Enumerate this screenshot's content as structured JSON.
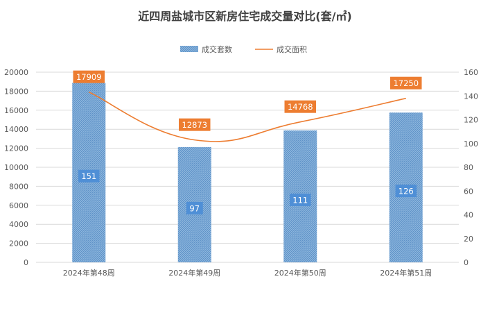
{
  "colors": {
    "bar": "#8db6dd",
    "bar_hatch": "#5a8fc6",
    "line": "#ed7d31",
    "area_label_bg": "#ed7d31",
    "count_label_bg": "#4f8fd6",
    "grid": "#d9d9d9",
    "axis_text": "#595959",
    "title": "#404040"
  },
  "chart_data": {
    "type": "bar",
    "title": "近四周盐城市区新房住宅成交量对比(套/㎡)",
    "legend": {
      "placement": "top",
      "entries": [
        "成交套数",
        "成交面积"
      ]
    },
    "categories": [
      "2024年第48周",
      "2024年第49周",
      "2024年第50周",
      "2024年第51周"
    ],
    "series": [
      {
        "name": "成交套数",
        "kind": "bar",
        "axis": "right",
        "values": [
          151,
          97,
          111,
          126
        ],
        "labels": [
          "151",
          "97",
          "111",
          "126"
        ]
      },
      {
        "name": "成交面积",
        "kind": "line",
        "axis": "left",
        "values": [
          17909,
          12873,
          14768,
          17250
        ],
        "labels": [
          "17909",
          "12873",
          "14768",
          "17250"
        ]
      }
    ],
    "y_left": {
      "min": 0,
      "max": 20000,
      "step": 2000,
      "ticks": [
        "0",
        "2000",
        "4000",
        "6000",
        "8000",
        "10000",
        "12000",
        "14000",
        "16000",
        "18000",
        "20000"
      ]
    },
    "y_right": {
      "min": 0,
      "max": 160,
      "step": 20,
      "ticks": [
        "0",
        "20",
        "40",
        "60",
        "80",
        "100",
        "120",
        "140",
        "160"
      ]
    },
    "grid": true
  }
}
